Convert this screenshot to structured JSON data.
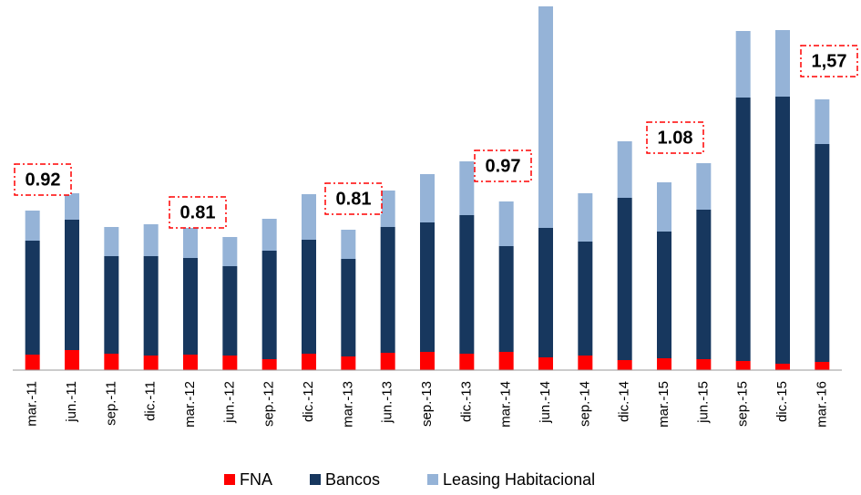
{
  "chart_data": {
    "type": "stacked-bar",
    "categories": [
      "mar.-11",
      "jun.-11",
      "sep.-11",
      "dic.-11",
      "mar.-12",
      "jun.-12",
      "sep.-12",
      "dic.-12",
      "mar.-13",
      "jun.-13",
      "sep.-13",
      "dic.-13",
      "mar.-14",
      "jun.-14",
      "sep.-14",
      "dic.-14",
      "mar.-15",
      "jun.-15",
      "sep.-15",
      "dic.-15",
      "mar.-16"
    ],
    "series": [
      {
        "name": "FNA",
        "color": "#ff0000",
        "values": [
          17,
          22,
          18,
          16,
          17,
          16,
          12,
          18,
          15,
          19,
          20,
          18,
          20,
          14,
          16,
          11,
          13,
          12,
          10,
          7,
          9
        ]
      },
      {
        "name": "Bancos",
        "color": "#17375e",
        "values": [
          125,
          143,
          107,
          109,
          106,
          98,
          119,
          125,
          107,
          138,
          142,
          152,
          116,
          142,
          125,
          178,
          139,
          164,
          289,
          293,
          239
        ]
      },
      {
        "name": "Leasing Habitacional",
        "color": "#95b3d7",
        "values": [
          33,
          29,
          32,
          35,
          33,
          32,
          35,
          50,
          32,
          40,
          53,
          59,
          49,
          243,
          53,
          62,
          54,
          51,
          73,
          73,
          49
        ]
      }
    ],
    "annotations": [
      "0.92",
      "0.81",
      "0.81",
      "0.97",
      "1.08",
      "1,57"
    ],
    "legend": "bottom"
  }
}
